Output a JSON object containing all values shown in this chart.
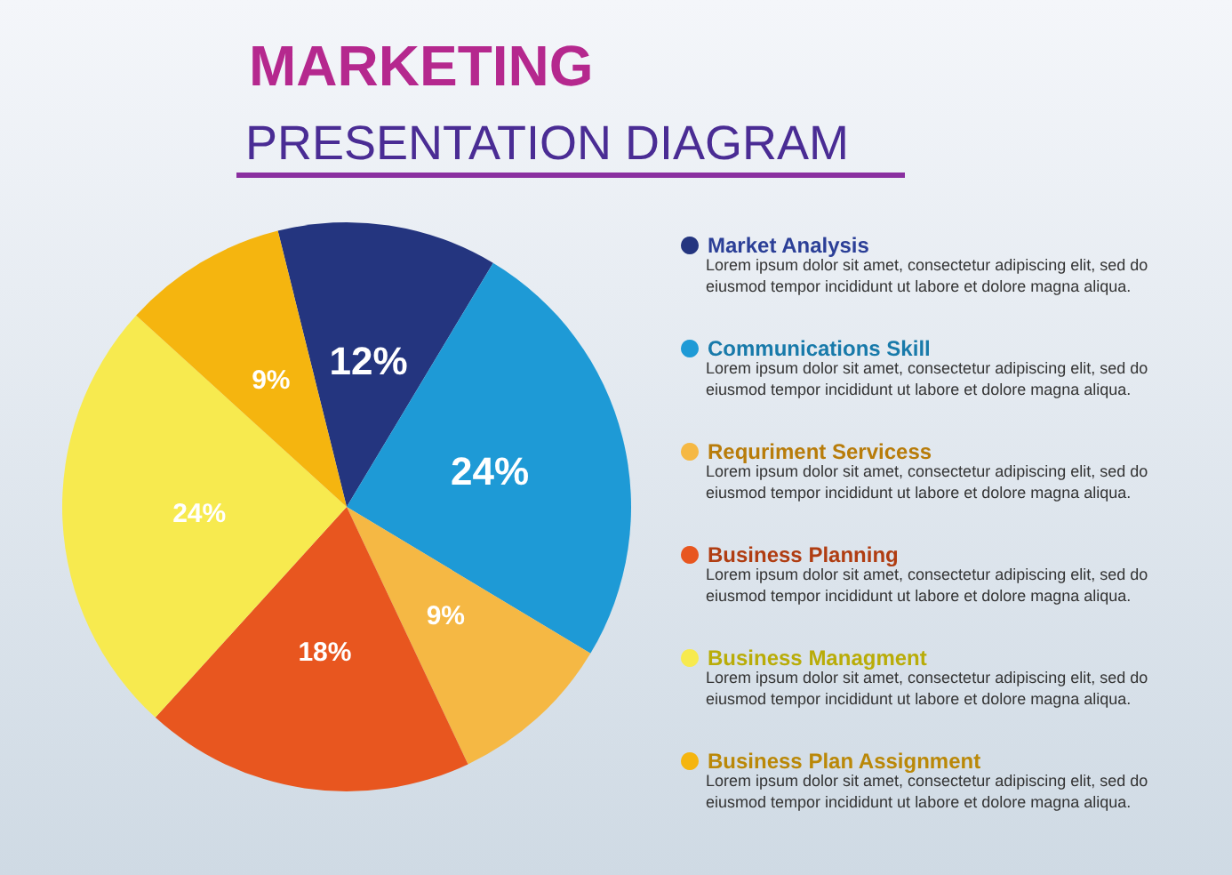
{
  "chart_data": {
    "type": "pie",
    "title": "MARKETING",
    "subtitle": "PRESENTATION DIAGRAM",
    "categories": [
      "Market Analysis",
      "Communications Skill",
      "Requriment Servicess",
      "Business Planning",
      "Business Managment",
      "Business Plan Assignment"
    ],
    "values": [
      12,
      24,
      9,
      18,
      24,
      9
    ],
    "value_labels": [
      "12%",
      "24%",
      "9%",
      "18%",
      "24%",
      "9%"
    ],
    "colors": [
      "#24357f",
      "#1e9ad6",
      "#f5b844",
      "#e8561f",
      "#f7ea4f",
      "#f5b50f"
    ],
    "legend": "right",
    "annotations": [
      "Lorem ipsum dolor sit amet, consectetur adipiscing elit, sed do eiusmod tempor incididunt ut labore et dolore magna aliqua.",
      "Lorem ipsum dolor sit amet, consectetur adipiscing elit, sed do eiusmod tempor incididunt ut labore et dolore magna aliqua.",
      "Lorem ipsum dolor sit amet, consectetur adipiscing elit, sed do eiusmod tempor incididunt ut labore et dolore magna aliqua.",
      "Lorem ipsum dolor sit amet, consectetur adipiscing elit, sed do eiusmod tempor incididunt ut labore et dolore magna aliqua.",
      "Lorem ipsum dolor sit amet, consectetur adipiscing elit, sed do eiusmod tempor incididunt ut labore et dolore magna aliqua.",
      "Lorem ipsum dolor sit amet, consectetur adipiscing elit, sed do eiusmod tempor incididunt ut labore et dolore magna aliqua."
    ]
  }
}
